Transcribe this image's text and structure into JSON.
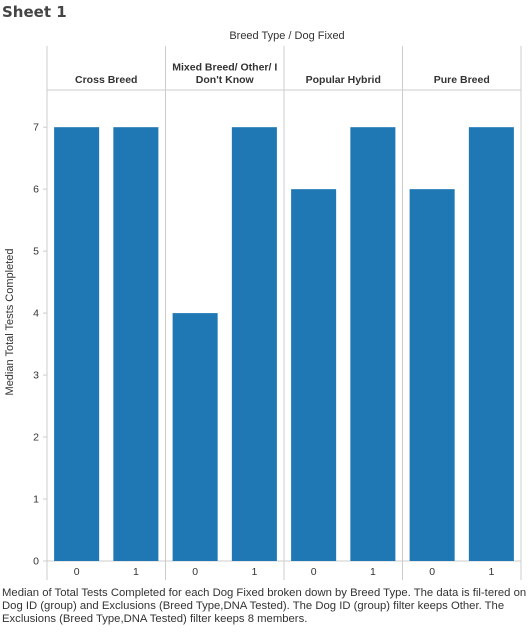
{
  "sheet": {
    "title": "Sheet 1"
  },
  "colors": {
    "bar": "#1F77B4",
    "axis": "#cccccc",
    "text": "#333333"
  },
  "chart_data": {
    "type": "bar",
    "header": "Breed Type  /  Dog Fixed",
    "ylabel": "Median Total Tests Completed",
    "ylim": [
      0,
      7.6
    ],
    "yticks": [
      0,
      1,
      2,
      3,
      4,
      5,
      6,
      7
    ],
    "grid": false,
    "groups": [
      {
        "name": [
          "Cross Breed"
        ],
        "categories": [
          "0",
          "1"
        ],
        "values": [
          7,
          7
        ]
      },
      {
        "name": [
          "Mixed Breed/ Other/ I",
          "Don't Know"
        ],
        "categories": [
          "0",
          "1"
        ],
        "values": [
          4,
          7
        ]
      },
      {
        "name": [
          "Popular Hybrid"
        ],
        "categories": [
          "0",
          "1"
        ],
        "values": [
          6,
          7
        ]
      },
      {
        "name": [
          "Pure Breed"
        ],
        "categories": [
          "0",
          "1"
        ],
        "values": [
          6,
          7
        ]
      }
    ]
  },
  "caption": "Median of Total Tests Completed for each Dog Fixed broken down by Breed Type. The data is fil-tered on Dog ID (group) and Exclusions (Breed Type,DNA Tested). The Dog ID (group) filter keeps Other. The Exclusions (Breed Type,DNA Tested) filter keeps 8 members."
}
